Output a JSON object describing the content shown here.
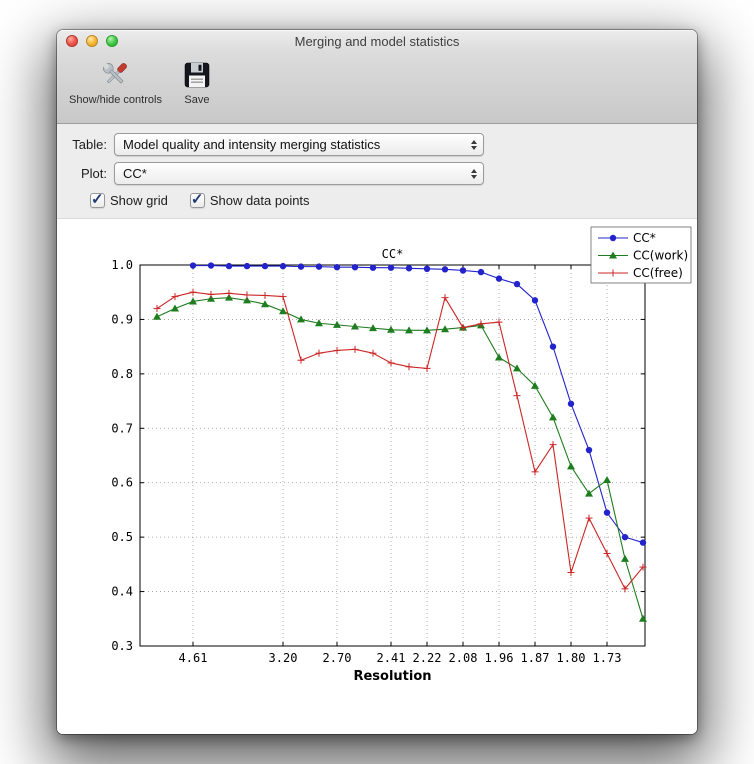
{
  "window": {
    "title": "Merging and model statistics",
    "traffic_lights": [
      {
        "name": "close",
        "color": "#f0564a"
      },
      {
        "name": "minimize",
        "color": "#f6b42e"
      },
      {
        "name": "zoom",
        "color": "#3dc83e"
      }
    ]
  },
  "toolbar": {
    "items": [
      {
        "label": "Show/hide controls",
        "icon": "tools-icon"
      },
      {
        "label": "Save",
        "icon": "save-icon"
      }
    ]
  },
  "controls": {
    "table": {
      "label": "Table:",
      "value": "Model quality and intensity merging statistics"
    },
    "plot": {
      "label": "Plot:",
      "value": "CC*"
    },
    "checkboxes": [
      {
        "label": "Show grid",
        "checked": true
      },
      {
        "label": "Show data points",
        "checked": true
      }
    ]
  },
  "chart_data": {
    "type": "line",
    "title": "CC*",
    "xlabel": "Resolution",
    "ylabel": "",
    "ylim": [
      0.3,
      1.0
    ],
    "y_ticks": [
      0.3,
      0.4,
      0.5,
      0.6,
      0.7,
      0.8,
      0.9,
      1.0
    ],
    "x_tick_labels": [
      "4.61",
      "3.20",
      "2.70",
      "2.41",
      "2.22",
      "2.08",
      "1.96",
      "1.87",
      "1.80",
      "1.73"
    ],
    "x_tick_indices": [
      2,
      7,
      10,
      13,
      15,
      17,
      19,
      21,
      23,
      25
    ],
    "grid": true,
    "show_data_points": true,
    "legend_position": "upper right",
    "series": [
      {
        "name": "CC*",
        "color": "#2323cc",
        "marker": "circle",
        "values": [
          null,
          null,
          0.999,
          0.999,
          0.998,
          0.998,
          0.998,
          0.998,
          0.997,
          0.997,
          0.996,
          0.996,
          0.995,
          0.995,
          0.994,
          0.993,
          0.992,
          0.99,
          0.987,
          0.975,
          0.965,
          0.935,
          0.85,
          0.745,
          0.66,
          0.545,
          0.5,
          0.49
        ]
      },
      {
        "name": "CC(work)",
        "color": "#1e7d1e",
        "marker": "triangle",
        "values": [
          0.905,
          0.92,
          0.933,
          0.938,
          0.94,
          0.935,
          0.928,
          0.915,
          0.9,
          0.893,
          0.89,
          0.887,
          0.884,
          0.881,
          0.88,
          0.88,
          0.882,
          0.885,
          0.889,
          0.83,
          0.81,
          0.778,
          0.72,
          0.63,
          0.58,
          0.605,
          0.46,
          0.35
        ]
      },
      {
        "name": "CC(free)",
        "color": "#cc2626",
        "marker": "plus",
        "values": [
          0.92,
          0.942,
          0.95,
          0.946,
          0.948,
          0.945,
          0.944,
          0.942,
          0.825,
          0.838,
          0.843,
          0.845,
          0.838,
          0.82,
          0.813,
          0.81,
          0.94,
          0.885,
          0.892,
          0.895,
          0.76,
          0.62,
          0.67,
          0.435,
          0.535,
          0.47,
          0.405,
          0.445
        ]
      }
    ]
  }
}
